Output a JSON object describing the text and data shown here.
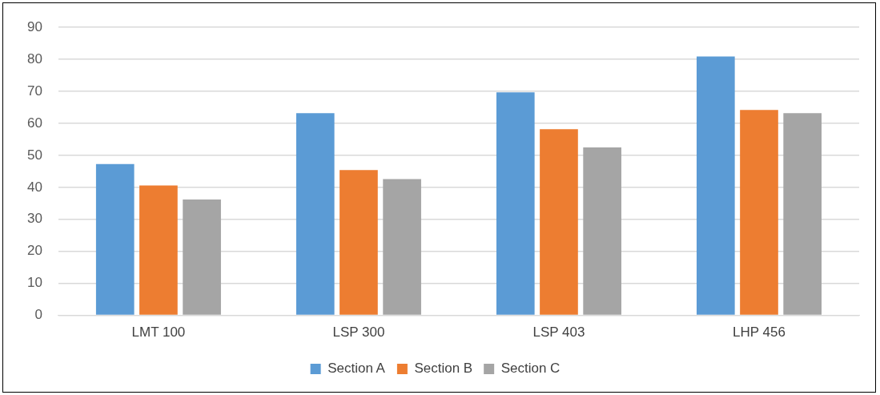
{
  "chart_data": {
    "type": "bar",
    "categories": [
      "LMT 100",
      "LSP 300",
      "LSP 403",
      "LHP 456"
    ],
    "series": [
      {
        "name": "Section A",
        "color": "#5b9bd5",
        "values": [
          47.3,
          63.2,
          69.7,
          80.9
        ]
      },
      {
        "name": "Section B",
        "color": "#ed7d31",
        "values": [
          40.6,
          45.4,
          58.2,
          64.2
        ]
      },
      {
        "name": "Section C",
        "color": "#a5a5a5",
        "values": [
          36.2,
          42.6,
          52.5,
          63.2
        ]
      }
    ],
    "ylim": [
      0,
      90
    ],
    "yticks": [
      0,
      10,
      20,
      30,
      40,
      50,
      60,
      70,
      80,
      90
    ],
    "grid": "y",
    "legend": "bottom"
  }
}
